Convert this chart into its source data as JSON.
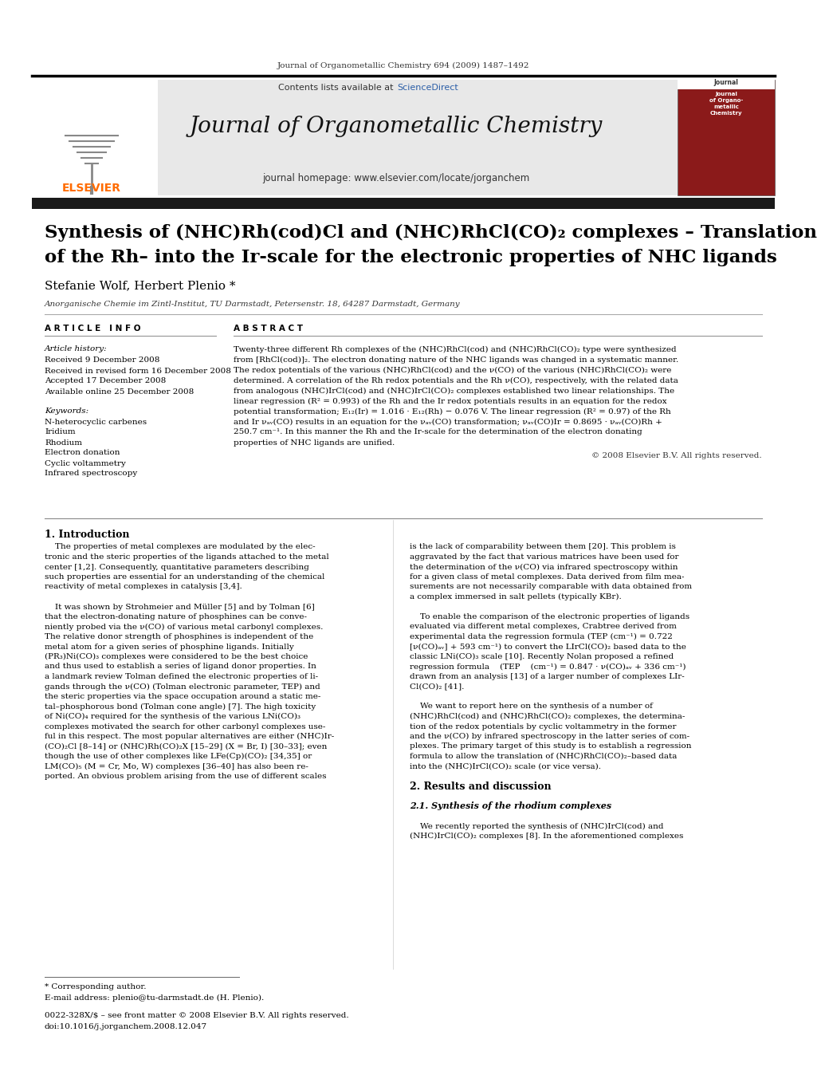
{
  "page_bg": "#ffffff",
  "header_journal_line": "Journal of Organometallic Chemistry 694 (2009) 1487–1492",
  "journal_title": "Journal of Organometallic Chemistry",
  "journal_homepage": "journal homepage: www.elsevier.com/locate/jorganchem",
  "contents_available": "Contents lists available at ",
  "science_direct": "ScienceDirect",
  "elsevier_color": "#FF6B00",
  "sciencedirect_color": "#2B5EA7",
  "header_bg": "#E8E8E8",
  "dark_bar_color": "#1a1a1a",
  "article_title_line1": "Synthesis of (NHC)Rh(cod)Cl and (NHC)RhCl(CO)₂ complexes – Translation",
  "article_title_line2": "of the Rh– into the Ir-scale for the electronic properties of NHC ligands",
  "authors": "Stefanie Wolf, Herbert Plenio *",
  "affiliation": "Anorganische Chemie im Zintl-Institut, TU Darmstadt, Petersenstr. 18, 64287 Darmstadt, Germany",
  "article_info_label": "A R T I C L E   I N F O",
  "abstract_label": "A B S T R A C T",
  "article_history_label": "Article history:",
  "received1": "Received 9 December 2008",
  "received2": "Received in revised form 16 December 2008",
  "accepted": "Accepted 17 December 2008",
  "available": "Available online 25 December 2008",
  "keywords_label": "Keywords:",
  "keywords": [
    "N-heterocyclic carbenes",
    "Iridium",
    "Rhodium",
    "Electron donation",
    "Cyclic voltammetry",
    "Infrared spectroscopy"
  ],
  "copyright": "© 2008 Elsevier B.V. All rights reserved.",
  "section1_title": "1. Introduction",
  "section2_title": "2. Results and discussion",
  "section21_title": "2.1. Synthesis of the rhodium complexes",
  "footnote_star": "* Corresponding author.",
  "footnote_email": "E-mail address: plenio@tu-darmstadt.de (H. Plenio).",
  "footnote_issn": "0022-328X/$ – see front matter © 2008 Elsevier B.V. All rights reserved.",
  "footnote_doi": "doi:10.1016/j.jorganchem.2008.12.047"
}
